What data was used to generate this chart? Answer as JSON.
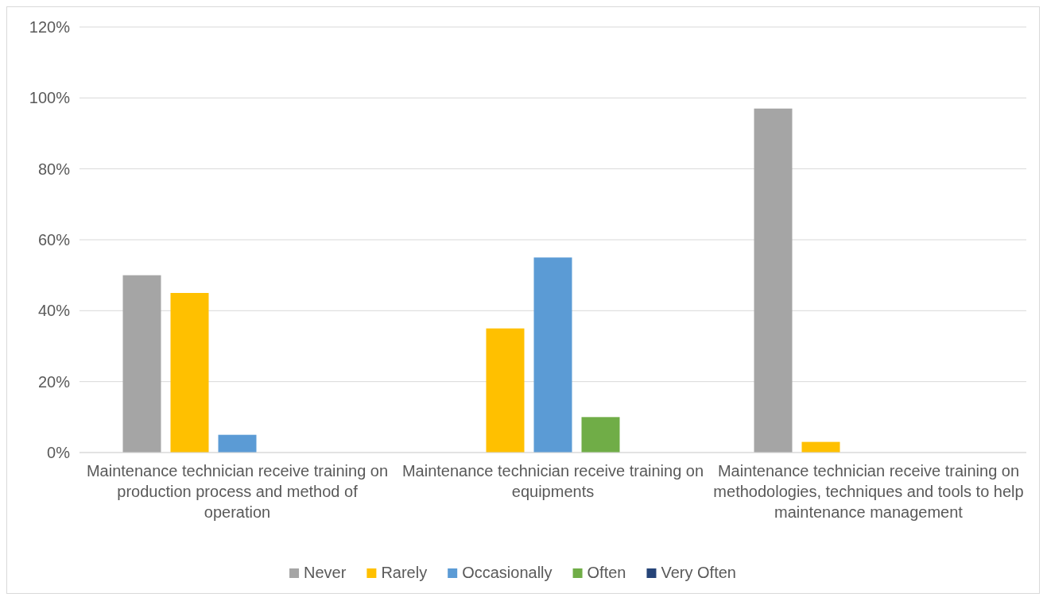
{
  "chart_data": {
    "type": "bar",
    "categories": [
      "Maintenance technician receive training on production process and method of operation",
      "Maintenance technician receive training on equipments",
      "Maintenance technician receive training on methodologies, techniques and tools to help maintenance management"
    ],
    "series": [
      {
        "name": "Never",
        "color": "#a5a5a5",
        "values": [
          50,
          0,
          97
        ]
      },
      {
        "name": "Rarely",
        "color": "#ffc000",
        "values": [
          45,
          35,
          3
        ]
      },
      {
        "name": "Occasionally",
        "color": "#5b9bd5",
        "values": [
          5,
          55,
          0
        ]
      },
      {
        "name": "Often",
        "color": "#70ad47",
        "values": [
          0,
          10,
          0
        ]
      },
      {
        "name": "Very Often",
        "color": "#264478",
        "values": [
          0,
          0,
          0
        ]
      }
    ],
    "ylim": [
      0,
      120
    ],
    "yticks": [
      {
        "value": 0,
        "label": "0%"
      },
      {
        "value": 20,
        "label": "20%"
      },
      {
        "value": 40,
        "label": "40%"
      },
      {
        "value": 60,
        "label": "60%"
      },
      {
        "value": 80,
        "label": "80%"
      },
      {
        "value": 100,
        "label": "100%"
      },
      {
        "value": 120,
        "label": "120%"
      }
    ],
    "grid": "y",
    "legend": "bottom"
  }
}
